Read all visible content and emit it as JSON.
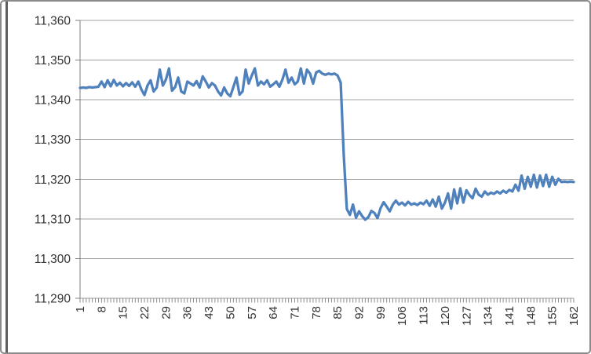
{
  "chart_data": {
    "type": "line",
    "title": "",
    "legend": false,
    "grid": true,
    "ylim": [
      11290,
      11360
    ],
    "y_tick_step": 10,
    "y_tick_labels": [
      "11,290",
      "11,300",
      "11,310",
      "11,320",
      "11,330",
      "11,340",
      "11,350",
      "11,360"
    ],
    "x_tick_interval": 7,
    "x_tick_labels": [
      "1",
      "8",
      "15",
      "22",
      "29",
      "36",
      "43",
      "50",
      "57",
      "64",
      "71",
      "78",
      "85",
      "92",
      "99",
      "106",
      "113",
      "120",
      "127",
      "134",
      "141",
      "148",
      "155",
      "162"
    ],
    "axis_color": "#7f7f7f",
    "grid_color": "#a0a0a0",
    "label_color": "#333333",
    "series": [
      {
        "name": "",
        "color": "#4F81BD",
        "values": [
          11343.0,
          11343.1,
          11343.0,
          11343.2,
          11343.1,
          11343.2,
          11343.3,
          11344.6,
          11343.2,
          11344.9,
          11343.4,
          11345.0,
          11343.6,
          11344.3,
          11343.4,
          11344.2,
          11343.5,
          11344.4,
          11343.3,
          11344.6,
          11342.6,
          11341.2,
          11343.6,
          11344.9,
          11342.1,
          11343.1,
          11347.6,
          11343.6,
          11345.1,
          11347.9,
          11342.3,
          11343.2,
          11345.6,
          11342.1,
          11341.6,
          11344.6,
          11344.1,
          11343.6,
          11344.7,
          11343.1,
          11345.9,
          11344.6,
          11343.1,
          11344.2,
          11343.6,
          11342.1,
          11341.1,
          11343.1,
          11341.6,
          11340.9,
          11343.2,
          11345.6,
          11341.3,
          11342.1,
          11347.6,
          11344.1,
          11346.1,
          11347.9,
          11343.6,
          11344.6,
          11343.9,
          11344.9,
          11343.3,
          11343.9,
          11344.6,
          11343.3,
          11345.1,
          11347.6,
          11344.3,
          11345.6,
          11343.9,
          11344.6,
          11347.9,
          11344.1,
          11347.6,
          11346.6,
          11344.1,
          11346.9,
          11347.3,
          11346.6,
          11346.3,
          11346.6,
          11346.4,
          11346.6,
          11346.1,
          11344.3,
          11326.0,
          11312.5,
          11311.0,
          11313.6,
          11310.3,
          11311.9,
          11310.7,
          11309.8,
          11310.4,
          11312.0,
          11311.5,
          11310.2,
          11312.7,
          11314.2,
          11313.1,
          11311.9,
          11313.6,
          11314.6,
          11313.6,
          11314.1,
          11313.4,
          11314.3,
          11313.6,
          11313.9,
          11313.5,
          11314.1,
          11313.7,
          11314.6,
          11313.3,
          11314.9,
          11313.1,
          11315.6,
          11312.6,
          11314.1,
          11316.4,
          11312.6,
          11317.4,
          11313.9,
          11317.7,
          11314.1,
          11317.2,
          11316.0,
          11315.2,
          11317.6,
          11316.1,
          11315.6,
          11316.9,
          11316.1,
          11316.6,
          11316.3,
          11316.9,
          11316.4,
          11317.1,
          11316.6,
          11317.3,
          11316.9,
          11318.6,
          11317.1,
          11320.9,
          11317.6,
          11320.6,
          11318.1,
          11321.1,
          11317.9,
          11320.9,
          11318.3,
          11321.1,
          11318.1,
          11320.6,
          11318.6,
          11320.1,
          11319.3,
          11319.4,
          11319.3,
          11319.4,
          11319.3
        ]
      }
    ]
  }
}
